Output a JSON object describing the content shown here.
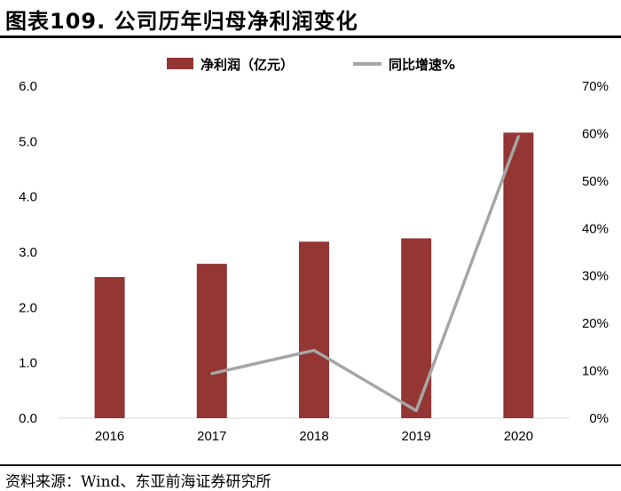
{
  "header": {
    "title": "图表109. 公司历年归母净利润变化"
  },
  "footer": {
    "source": "资料来源：Wind、东亚前海证券研究所"
  },
  "chart_data": {
    "type": "bar+line",
    "categories": [
      "2016",
      "2017",
      "2018",
      "2019",
      "2020"
    ],
    "series": [
      {
        "name": "净利润（亿元）",
        "type": "bar",
        "axis": "left",
        "values": [
          2.55,
          2.79,
          3.19,
          3.25,
          5.16
        ],
        "color": "#943634"
      },
      {
        "name": "同比增速%",
        "type": "line",
        "axis": "right",
        "values": [
          null,
          9.4,
          14.3,
          1.6,
          59.4
        ],
        "color": "#A6A6A6"
      }
    ],
    "y_left": {
      "ylim": [
        0,
        6
      ],
      "ticks": [
        "0.0",
        "1.0",
        "2.0",
        "3.0",
        "4.0",
        "5.0",
        "6.0"
      ]
    },
    "y_right": {
      "ylim": [
        0,
        70
      ],
      "ticks": [
        "0%",
        "10%",
        "20%",
        "30%",
        "40%",
        "50%",
        "60%",
        "70%"
      ]
    },
    "legend_position": "top-center"
  }
}
